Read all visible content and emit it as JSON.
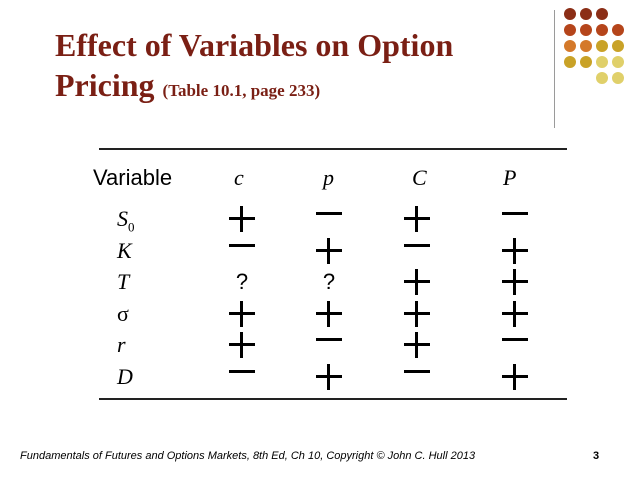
{
  "title": {
    "line1": "Effect of Variables on Option",
    "line2_main": "Pricing",
    "line2_sub": "(Table 10.1, page 233)"
  },
  "decoration": {
    "dot_colors": [
      "#8b2e16",
      "#b5451b",
      "#d4792a",
      "#c9a227",
      "#e0d06a"
    ]
  },
  "table": {
    "header": {
      "variable": "Variable",
      "c": "c",
      "p": "p",
      "C": "C",
      "P": "P"
    },
    "rows": [
      {
        "var": "S",
        "var_sub": "0",
        "effects": [
          "+",
          "−",
          "+",
          "−"
        ]
      },
      {
        "var": "K",
        "effects": [
          "−",
          "+",
          "−",
          "+"
        ]
      },
      {
        "var": "T",
        "effects": [
          "?",
          "?",
          "+",
          "+"
        ]
      },
      {
        "var": "σ",
        "effects": [
          "+",
          "+",
          "+",
          "+"
        ]
      },
      {
        "var": "r",
        "effects": [
          "+",
          "−",
          "+",
          "−"
        ]
      },
      {
        "var": "D",
        "effects": [
          "−",
          "+",
          "−",
          "+"
        ]
      }
    ]
  },
  "footer": {
    "text": "Fundamentals of Futures and Options Markets, 8th Ed, Ch 10, Copyright © John  C. Hull 2013",
    "page": "3"
  }
}
